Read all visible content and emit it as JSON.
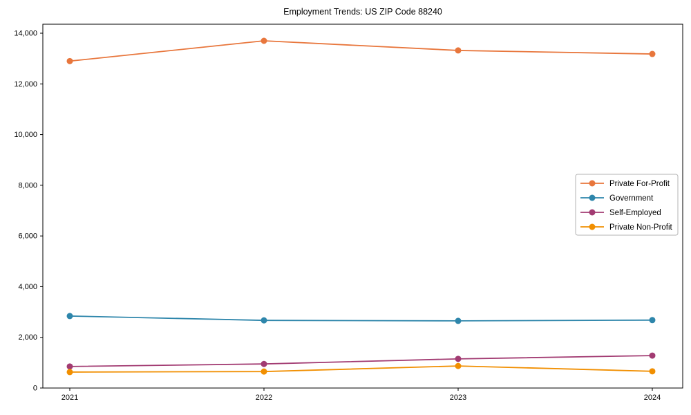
{
  "chart_data": {
    "type": "line",
    "title": "Employment Trends: US ZIP Code 88240",
    "categories": [
      "2021",
      "2022",
      "2023",
      "2024"
    ],
    "series": [
      {
        "name": "Private For-Profit",
        "color": "#E8763C",
        "values": [
          12900,
          13700,
          13320,
          13180
        ]
      },
      {
        "name": "Government",
        "color": "#2E86AB",
        "values": [
          2840,
          2670,
          2650,
          2680
        ]
      },
      {
        "name": "Self-Employed",
        "color": "#A23B72",
        "values": [
          850,
          950,
          1150,
          1280
        ]
      },
      {
        "name": "Private Non-Profit",
        "color": "#F18F01",
        "values": [
          630,
          650,
          870,
          660
        ]
      }
    ],
    "xlabel": "",
    "ylabel": "",
    "ylim": [
      0,
      14355
    ],
    "yticks": [
      0,
      2000,
      4000,
      6000,
      8000,
      10000,
      12000,
      14000
    ],
    "grid": false,
    "legend_position": "center right",
    "marker": "circle",
    "axis_color": "#000000",
    "legend_border_color": "#b3b3b3"
  }
}
